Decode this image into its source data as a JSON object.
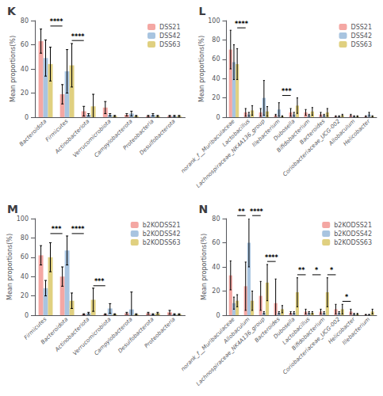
{
  "chart_data": [
    {
      "type": "bar",
      "title": "K",
      "categories": [
        "Bacteroidota",
        "Firmicutes",
        "Actinobacteriota",
        "Verrucomicrobiota",
        "Campylobacterota",
        "Proteobacteria",
        "Desulfobacterota"
      ],
      "series": [
        {
          "name": "DSS21",
          "color": "#F4A7A3",
          "values": [
            63,
            19,
            5,
            8,
            2,
            1,
            1
          ],
          "errors": [
            10,
            8,
            4,
            5,
            1,
            0.5,
            0.5
          ]
        },
        {
          "name": "DSS42",
          "color": "#A8C4E0",
          "values": [
            49,
            38,
            2,
            2,
            3,
            2,
            1
          ],
          "errors": [
            15,
            18,
            1,
            1,
            2,
            1,
            0.5
          ]
        },
        {
          "name": "DSS63",
          "color": "#E0D080",
          "values": [
            44,
            43,
            9,
            1,
            1,
            1,
            1
          ],
          "errors": [
            14,
            18,
            10,
            0.5,
            0.5,
            0.5,
            0.5
          ]
        }
      ],
      "ylabel": "Mean proportions(%)",
      "ylim": [
        0,
        80
      ],
      "yticks": [
        0,
        20,
        40,
        60,
        80
      ],
      "grid": false,
      "legend": "upper right",
      "annotations": [
        {
          "text": "****",
          "categories": [
            "Bacteroidota",
            "Firmicutes"
          ]
        },
        {
          "text": "****",
          "categories": [
            "Firmicutes",
            "Actinobacteriota"
          ]
        }
      ]
    },
    {
      "type": "bar",
      "title": "L",
      "categories": [
        "norank_f__Muribaculaceae",
        "Lactobacillus",
        "Lachnospiraceae_NK4A136_group",
        "Illebacterium",
        "Dubosella",
        "Bifidobacterium",
        "Bacteroides",
        "Coriobacteriaceae_UCG-002",
        "Allobaculum",
        "Helicobacter"
      ],
      "series": [
        {
          "name": "DSS21",
          "color": "#F4A7A3",
          "values": [
            70,
            5,
            5,
            2,
            5,
            5,
            3,
            1,
            2,
            1
          ],
          "errors": [
            20,
            4,
            4,
            1,
            4,
            3,
            2,
            0.5,
            1,
            0.5
          ]
        },
        {
          "name": "DSS42",
          "color": "#A8C4E0",
          "values": [
            57,
            3,
            20,
            8,
            3,
            2,
            2,
            1,
            1,
            3
          ],
          "errors": [
            18,
            2,
            18,
            7,
            2,
            1,
            1,
            0.5,
            0.5,
            2
          ]
        },
        {
          "name": "DSS63",
          "color": "#E0D080",
          "values": [
            55,
            7,
            6,
            1,
            12,
            6,
            5,
            2,
            1,
            1
          ],
          "errors": [
            16,
            5,
            5,
            0.5,
            8,
            4,
            4,
            1,
            0.5,
            0.5
          ]
        }
      ],
      "ylabel": "Mean proportions(%)",
      "ylim": [
        0,
        100
      ],
      "yticks": [
        0,
        20,
        40,
        60,
        80,
        100
      ],
      "grid": false,
      "legend": "upper right",
      "annotations": [
        {
          "text": "****",
          "categories": [
            "norank_f__Muribaculaceae",
            "Lactobacillus"
          ]
        },
        {
          "text": "***",
          "categories": [
            "Illebacterium",
            "Dubosella"
          ]
        }
      ]
    },
    {
      "type": "bar",
      "title": "M",
      "categories": [
        "Firmicutes",
        "Bacteroidota",
        "Actinobacteriota",
        "Verrucomicrobiota",
        "Campylobacterota",
        "Desulfobacterota",
        "Proteobacteria"
      ],
      "series": [
        {
          "name": "b2KODSS21",
          "color": "#F4A7A3",
          "values": [
            62,
            40,
            1,
            1,
            2,
            2,
            3
          ],
          "errors": [
            10,
            10,
            0.5,
            0.5,
            1,
            1,
            2
          ]
        },
        {
          "name": "b2KODSS42",
          "color": "#A8C4E0",
          "values": [
            28,
            67,
            2,
            7,
            6,
            1,
            1
          ],
          "errors": [
            8,
            15,
            1,
            5,
            18,
            0.5,
            0.5
          ]
        },
        {
          "name": "b2KODSS63",
          "color": "#E0D080",
          "values": [
            60,
            15,
            16,
            1,
            1,
            2,
            1
          ],
          "errors": [
            15,
            8,
            12,
            0.5,
            0.5,
            1,
            0.5
          ]
        }
      ],
      "ylabel": "Mean proportions(%)",
      "ylim": [
        0,
        100
      ],
      "yticks": [
        0,
        20,
        40,
        60,
        80,
        100
      ],
      "grid": false,
      "legend": "upper right",
      "annotations": [
        {
          "text": "***",
          "categories": [
            "Firmicutes",
            "Bacteroidota"
          ]
        },
        {
          "text": "****",
          "categories": [
            "Bacteroidota",
            "Actinobacteriota"
          ]
        },
        {
          "text": "***",
          "categories": [
            "Actinobacteriota",
            "Verrucomicrobiota"
          ]
        }
      ]
    },
    {
      "type": "bar",
      "title": "N",
      "categories": [
        "norank_f__Muribaculaceae",
        "Allobaculum",
        "Lachnospiraceae_NK4A136_group",
        "Bacteroides",
        "Dubosella",
        "Lactobacillus",
        "Bifidobacterium",
        "Coriobacteriaceae_UCG-002",
        "Helicobacter",
        "Illebacterium"
      ],
      "series": [
        {
          "name": "b2KODSS21",
          "color": "#F4A7A3",
          "values": [
            33,
            24,
            16,
            10,
            2,
            3,
            3,
            5,
            3,
            0.5
          ],
          "errors": [
            12,
            20,
            12,
            20,
            1,
            2,
            2,
            4,
            2,
            0.2
          ]
        },
        {
          "name": "b2KODSS42",
          "color": "#A8C4E0",
          "values": [
            10,
            60,
            2,
            2,
            2,
            2,
            2,
            2,
            1,
            0.5
          ],
          "errors": [
            5,
            20,
            1,
            1,
            1,
            1,
            1,
            1,
            0.5,
            0.2
          ]
        },
        {
          "name": "b2KODSS63",
          "color": "#E0D080",
          "values": [
            12,
            12,
            27,
            5,
            19,
            2,
            19,
            5,
            1,
            3
          ],
          "errors": [
            5,
            8,
            15,
            3,
            12,
            1,
            12,
            4,
            0.5,
            2
          ]
        }
      ],
      "ylabel": "Mean proportions(%)",
      "ylim": [
        0,
        80
      ],
      "yticks": [
        0,
        20,
        40,
        60,
        80
      ],
      "grid": false,
      "legend": "upper right",
      "annotations": [
        {
          "text": "**",
          "categories": [
            "norank_f__Muribaculaceae",
            "Allobaculum"
          ]
        },
        {
          "text": "****",
          "categories": [
            "Allobaculum",
            "Lachnospiraceae_NK4A136_group"
          ]
        },
        {
          "text": "****",
          "categories": [
            "Lachnospiraceae_NK4A136_group",
            "Bacteroides"
          ]
        },
        {
          "text": "**",
          "categories": [
            "Dubosella",
            "Lactobacillus"
          ]
        },
        {
          "text": "*",
          "categories": [
            "Lactobacillus",
            "Bifidobacterium"
          ]
        },
        {
          "text": "*",
          "categories": [
            "Bifidobacterium",
            "Coriobacteriaceae_UCG-002"
          ]
        },
        {
          "text": "*",
          "categories": [
            "Coriobacteriaceae_UCG-002",
            "Helicobacter"
          ]
        }
      ]
    }
  ]
}
